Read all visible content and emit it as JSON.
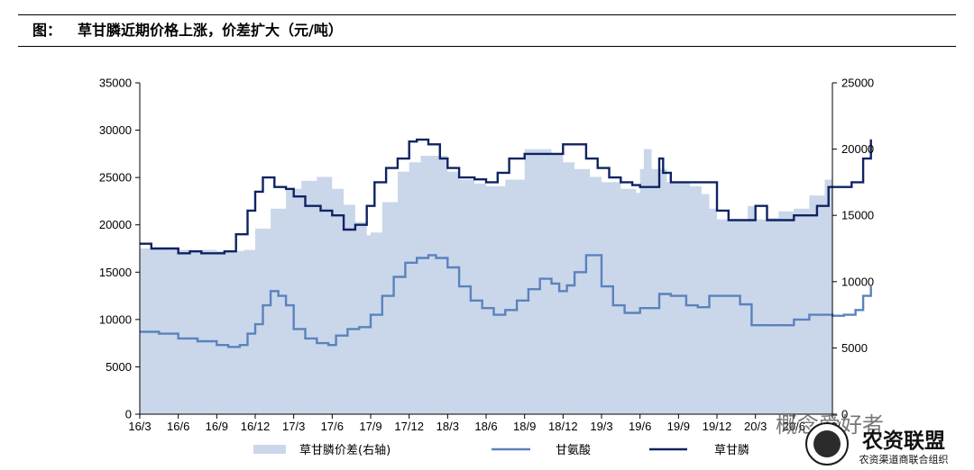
{
  "header": {
    "figure_label": "图：",
    "title": "草甘膦近期价格上涨，价差扩大（元/吨）"
  },
  "watermark": {
    "line1": "概念爱好者",
    "brand": "农资联盟",
    "sub": "农资渠道商联合组织"
  },
  "chart_data": {
    "type": "line",
    "x_ticks": [
      "16/3",
      "16/6",
      "16/9",
      "16/12",
      "17/3",
      "17/6",
      "17/9",
      "17/12",
      "18/3",
      "18/6",
      "18/9",
      "18/12",
      "19/3",
      "19/6",
      "19/9",
      "19/12",
      "20/3",
      "20/6",
      "20/9"
    ],
    "x_tick_labels": [
      "16/3",
      "16/6",
      "16/9",
      "16/12",
      "17/3",
      "17/6",
      "17/9",
      "17/12",
      "18/3",
      "18/6",
      "18/9",
      "18/12",
      "19/3",
      "19/6",
      "19/9",
      "19/12",
      "20/3",
      "20/6",
      "20/"
    ],
    "y_left": {
      "ylim": [
        0,
        35000
      ],
      "ticks": [
        0,
        5000,
        10000,
        15000,
        20000,
        25000,
        30000,
        35000
      ]
    },
    "y_right": {
      "ylim": [
        0,
        25000
      ],
      "ticks": [
        0,
        5000,
        10000,
        15000,
        20000,
        25000
      ]
    },
    "colors": {
      "spread": "#cad7ea",
      "glycine": "#5b82bd",
      "glyphosate": "#0f2363"
    },
    "series": [
      {
        "name": "草甘膦价差(右轴)",
        "axis": "right",
        "kind": "area",
        "x": [
          0.0,
          1.0,
          2.0,
          2.7,
          3.0,
          3.4,
          3.8,
          4.2,
          4.6,
          5.0,
          5.3,
          5.6,
          5.9,
          6.0,
          6.3,
          6.7,
          7.0,
          7.3,
          7.7,
          8.0,
          8.3,
          8.7,
          9.0,
          9.5,
          10.0,
          10.3,
          10.5,
          10.7,
          11.0,
          11.3,
          11.7,
          12.0,
          12.5,
          12.9,
          13.0,
          13.1,
          13.3,
          13.7,
          14.0,
          14.3,
          14.6,
          14.8,
          15.0,
          15.4,
          15.8,
          16.0,
          16.3,
          16.6,
          17.0,
          17.4,
          17.8,
          18.0,
          18.3,
          18.6,
          19.0
        ],
        "values": [
          12500,
          12400,
          12300,
          12400,
          14000,
          15500,
          17000,
          17600,
          17900,
          17000,
          15800,
          14500,
          13500,
          13700,
          16000,
          18300,
          19000,
          19500,
          19500,
          18300,
          17700,
          17400,
          17200,
          17700,
          20000,
          20000,
          20000,
          19600,
          19000,
          18500,
          17900,
          17500,
          17000,
          16700,
          18500,
          20000,
          18500,
          17500,
          17500,
          17200,
          16600,
          15500,
          14700,
          14700,
          15700,
          14700,
          14800,
          15300,
          15500,
          16500,
          17700,
          18000,
          18000,
          18500,
          19000
        ]
      },
      {
        "name": "甘氨酸",
        "axis": "left",
        "kind": "line",
        "x": [
          0.0,
          0.5,
          1.0,
          1.5,
          2.0,
          2.3,
          2.6,
          2.8,
          3.0,
          3.2,
          3.4,
          3.6,
          3.8,
          4.0,
          4.3,
          4.6,
          4.9,
          5.1,
          5.4,
          5.7,
          6.0,
          6.3,
          6.6,
          6.9,
          7.2,
          7.5,
          7.7,
          8.0,
          8.3,
          8.6,
          8.9,
          9.2,
          9.5,
          9.8,
          10.1,
          10.4,
          10.7,
          10.9,
          11.1,
          11.3,
          11.6,
          12.0,
          12.3,
          12.6,
          13.0,
          13.5,
          13.8,
          14.2,
          14.5,
          14.8,
          15.2,
          15.6,
          15.9,
          16.2,
          16.6,
          17.0,
          17.4,
          17.8,
          18.0,
          18.3,
          18.6,
          18.8,
          19.0
        ],
        "values": [
          8700,
          8500,
          8000,
          7700,
          7300,
          7100,
          7300,
          8500,
          9500,
          11500,
          13000,
          12500,
          11500,
          9000,
          8000,
          7500,
          7300,
          8300,
          9000,
          9200,
          10500,
          12500,
          14500,
          16000,
          16500,
          16800,
          16500,
          15500,
          13500,
          12000,
          11200,
          10500,
          11000,
          12000,
          13200,
          14300,
          13800,
          13000,
          13600,
          15000,
          16800,
          13500,
          11500,
          10700,
          11200,
          12700,
          12500,
          11500,
          11300,
          12500,
          12500,
          11600,
          9400,
          9400,
          9400,
          10000,
          10500,
          10500,
          10400,
          10500,
          11000,
          12500,
          13500
        ]
      },
      {
        "name": "草甘膦",
        "axis": "left",
        "kind": "line",
        "x": [
          0.0,
          0.3,
          0.6,
          1.0,
          1.3,
          1.6,
          2.0,
          2.2,
          2.5,
          2.8,
          3.0,
          3.2,
          3.5,
          3.8,
          4.0,
          4.3,
          4.7,
          5.0,
          5.3,
          5.6,
          5.9,
          6.1,
          6.4,
          6.7,
          7.0,
          7.2,
          7.5,
          7.8,
          8.0,
          8.3,
          8.7,
          9.0,
          9.3,
          9.6,
          10.0,
          10.3,
          10.6,
          11.0,
          11.3,
          11.6,
          11.9,
          12.2,
          12.5,
          12.8,
          13.0,
          13.3,
          13.5,
          13.6,
          13.8,
          14.2,
          14.6,
          15.0,
          15.3,
          15.6,
          16.0,
          16.3,
          16.6,
          17.0,
          17.3,
          17.6,
          17.9,
          18.2,
          18.5,
          18.8,
          19.0
        ],
        "values": [
          18000,
          17500,
          17500,
          17000,
          17200,
          17000,
          17000,
          17200,
          19000,
          21500,
          23500,
          25000,
          24000,
          23800,
          23000,
          22000,
          21500,
          21000,
          19500,
          20000,
          22000,
          24500,
          26000,
          27000,
          28800,
          29000,
          28500,
          27000,
          26000,
          25000,
          24800,
          24500,
          25500,
          27000,
          27500,
          27500,
          27500,
          28500,
          28500,
          27000,
          26000,
          25000,
          24500,
          24200,
          24000,
          24000,
          27000,
          25500,
          24500,
          24500,
          24500,
          21500,
          20500,
          20500,
          22000,
          20500,
          20500,
          21000,
          21000,
          22000,
          24000,
          24000,
          24500,
          27000,
          29000
        ]
      }
    ],
    "legend": {
      "placement": "bottom",
      "labels": [
        "草甘膦价差(右轴)",
        "甘氨酸",
        "草甘膦"
      ]
    }
  }
}
